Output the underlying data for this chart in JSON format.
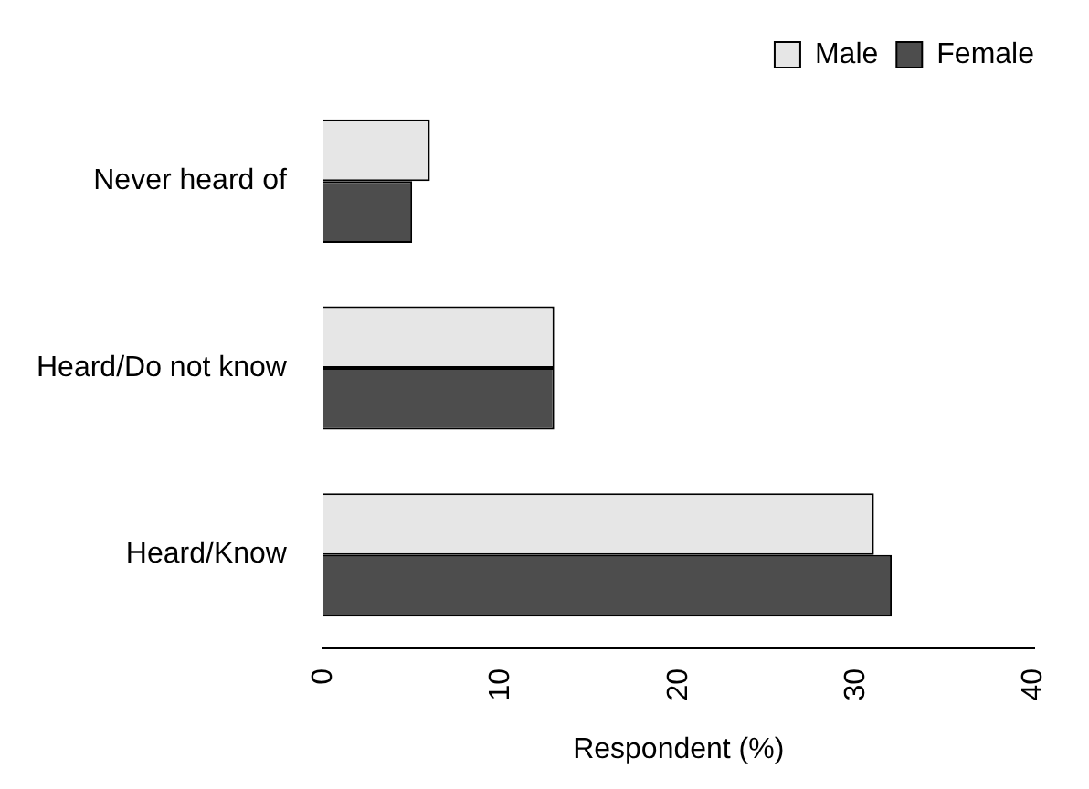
{
  "chart_data": {
    "type": "bar",
    "orientation": "horizontal",
    "xlabel": "Respondent (%)",
    "categories": [
      "Never heard of",
      "Heard/Do not know",
      "Heard/Know"
    ],
    "series": [
      {
        "name": "Male",
        "color": "#e6e6e6",
        "values": [
          6,
          13,
          31
        ]
      },
      {
        "name": "Female",
        "color": "#4d4d4d",
        "values": [
          5,
          13,
          32
        ]
      }
    ],
    "xlim": [
      0,
      40
    ],
    "xticks": [
      0,
      10,
      20,
      30,
      40
    ],
    "grid": false,
    "legend": "top right"
  }
}
